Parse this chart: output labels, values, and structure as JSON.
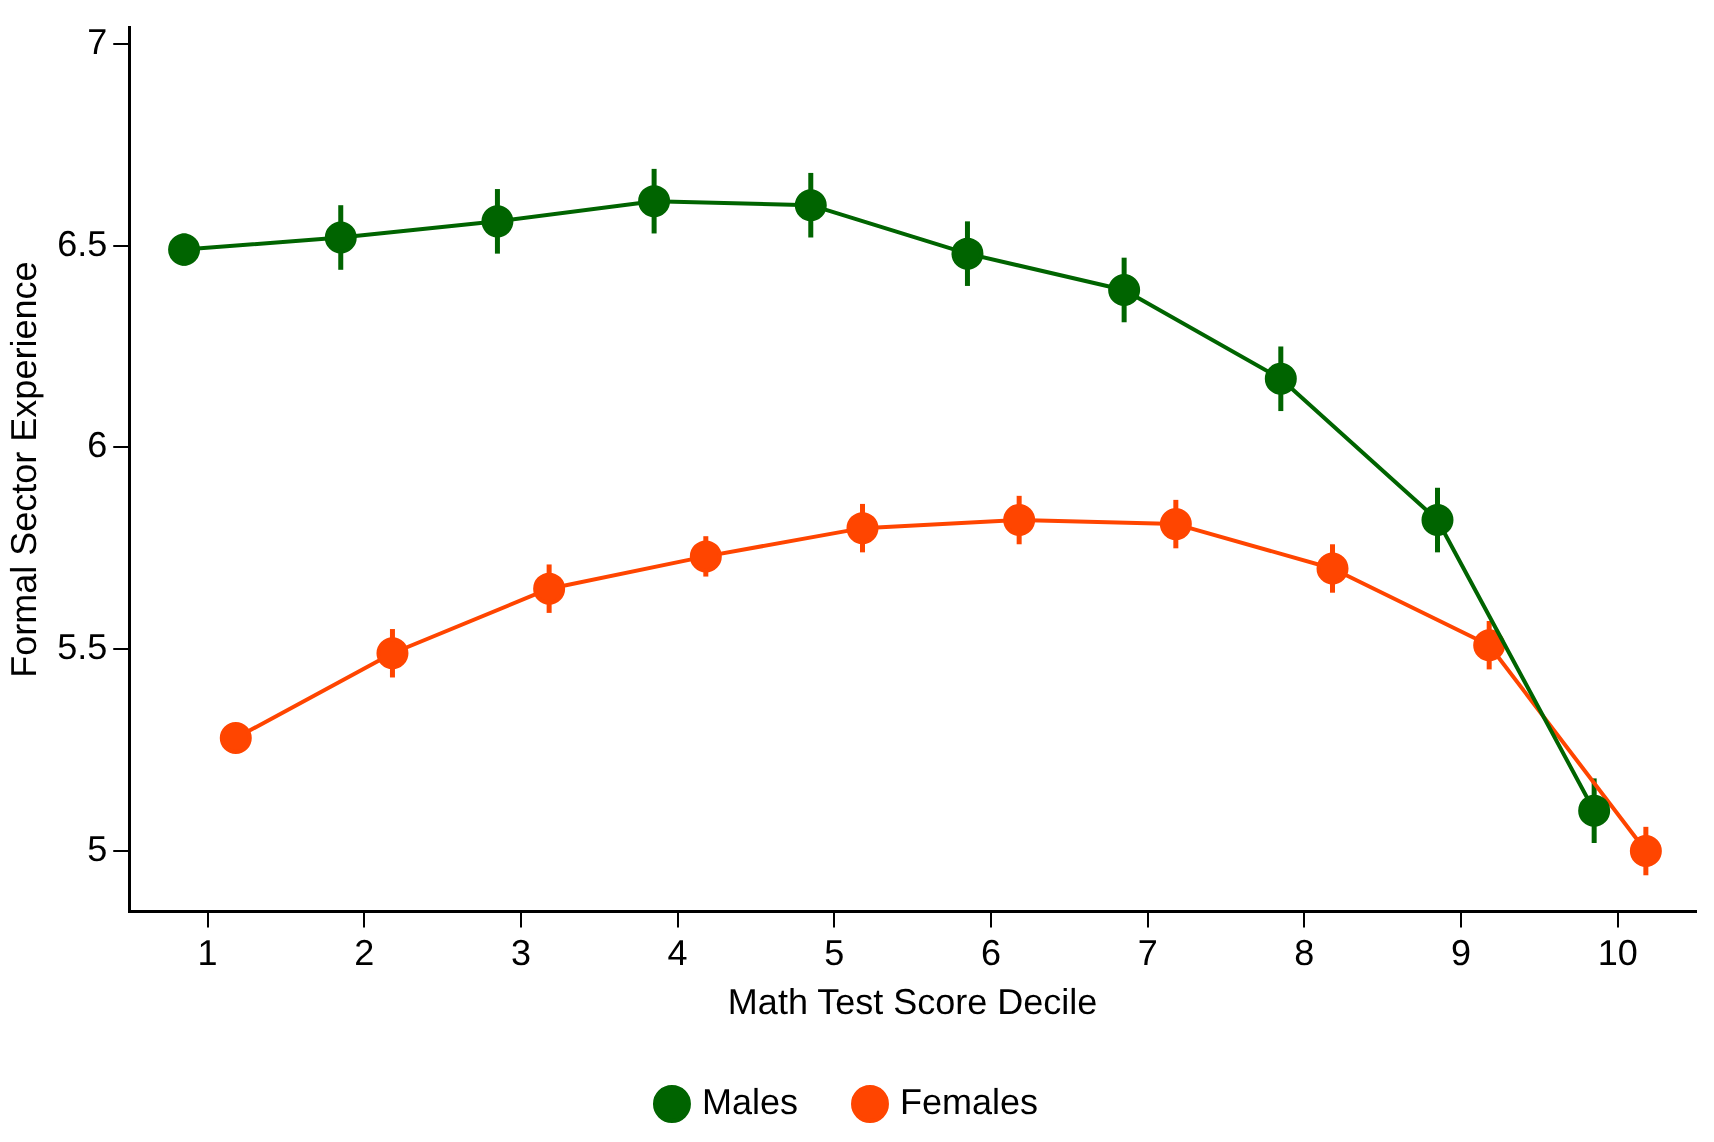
{
  "chart_data": {
    "type": "line",
    "xlabel": "Math Test Score Decile",
    "ylabel": "Formal Sector Experience",
    "xlim": [
      0.5,
      10.5
    ],
    "xticks": [
      1,
      2,
      3,
      4,
      5,
      6,
      7,
      8,
      9,
      10
    ],
    "ylim": [
      4.85,
      7.04
    ],
    "yticks": [
      5,
      5.5,
      6,
      6.5,
      7
    ],
    "grid": false,
    "legend": "bottom",
    "marker": "circle",
    "line_style": "solid",
    "series": [
      {
        "name": "Males",
        "color": "#006400",
        "x": [
          0.85,
          1.85,
          2.85,
          3.85,
          4.85,
          5.85,
          6.85,
          7.85,
          8.85,
          9.85
        ],
        "values": [
          6.49,
          6.52,
          6.56,
          6.61,
          6.6,
          6.48,
          6.39,
          6.17,
          5.82,
          5.1
        ],
        "errors": [
          0.04,
          0.08,
          0.08,
          0.08,
          0.08,
          0.08,
          0.08,
          0.08,
          0.08,
          0.08
        ]
      },
      {
        "name": "Females",
        "color": "#ff4500",
        "x": [
          1.18,
          2.18,
          3.18,
          4.18,
          5.18,
          6.18,
          7.18,
          8.18,
          9.18,
          10.18
        ],
        "values": [
          5.28,
          5.49,
          5.65,
          5.73,
          5.8,
          5.82,
          5.81,
          5.7,
          5.51,
          5.0
        ],
        "errors": [
          0.03,
          0.06,
          0.06,
          0.05,
          0.06,
          0.06,
          0.06,
          0.06,
          0.06,
          0.06
        ]
      }
    ]
  }
}
